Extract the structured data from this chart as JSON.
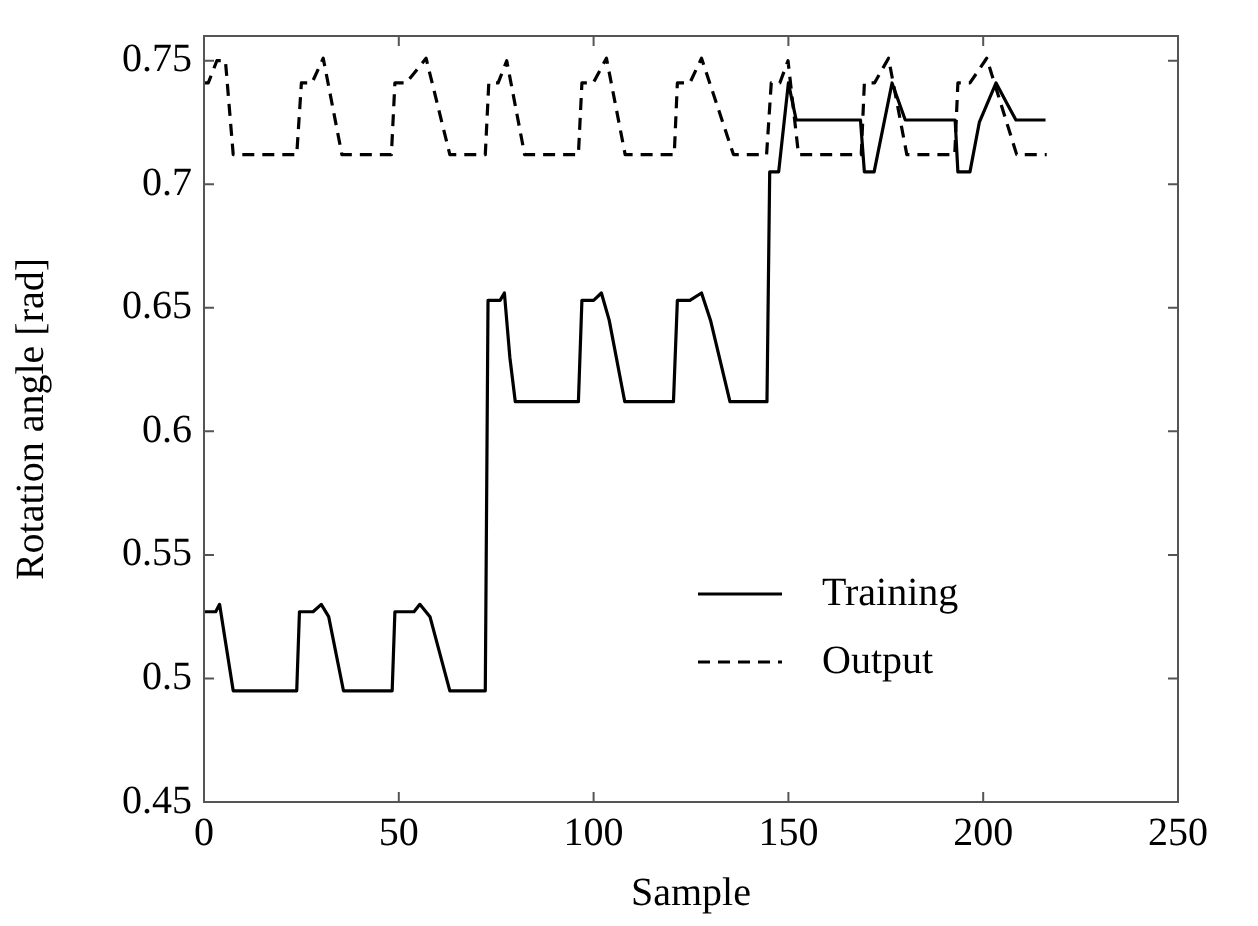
{
  "chart_data": {
    "type": "line",
    "xlabel": "Sample",
    "ylabel": "Rotation angle [rad]",
    "xlim": [
      0,
      250
    ],
    "xticks": [
      0,
      50,
      100,
      150,
      200,
      250
    ],
    "ylim": [
      0.45,
      0.76
    ],
    "yticks": [
      {
        "value": 0.45,
        "label": "0.45"
      },
      {
        "value": 0.5,
        "label": "0.5"
      },
      {
        "value": 0.55,
        "label": "0.55"
      },
      {
        "value": 0.6,
        "label": "0.6"
      },
      {
        "value": 0.65,
        "label": "0.65"
      },
      {
        "value": 0.7,
        "label": "0.7"
      },
      {
        "value": 0.75,
        "label": "0.75"
      }
    ],
    "grid": false,
    "legend": "bottom right",
    "marker": "none",
    "series": [
      {
        "name": "Training",
        "color": "#000000",
        "line_style": "solid",
        "x": [
          0,
          3,
          4,
          5.5,
          7.5,
          23.8,
          24.5,
          28,
          30.1,
          32,
          35.8,
          48.3,
          49,
          53.9,
          55.4,
          58,
          63.1,
          72.2,
          72.9,
          76,
          77.1,
          78.5,
          79.9,
          96.1,
          97,
          100,
          102,
          104,
          108,
          120.5,
          121.5,
          124.7,
          127.7,
          130,
          135,
          144.5,
          145.2,
          147.5,
          150,
          152,
          168.5,
          169.5,
          172,
          176.6,
          180,
          192.8,
          193.5,
          196.6,
          199,
          203.3,
          206,
          208.4,
          216
        ],
        "values": [
          0.527,
          0.527,
          0.53,
          0.515,
          0.495,
          0.495,
          0.527,
          0.527,
          0.53,
          0.525,
          0.495,
          0.495,
          0.527,
          0.527,
          0.53,
          0.525,
          0.495,
          0.495,
          0.653,
          0.653,
          0.656,
          0.63,
          0.612,
          0.612,
          0.653,
          0.653,
          0.656,
          0.645,
          0.612,
          0.612,
          0.653,
          0.653,
          0.656,
          0.645,
          0.612,
          0.612,
          0.705,
          0.705,
          0.741,
          0.726,
          0.726,
          0.705,
          0.705,
          0.741,
          0.726,
          0.726,
          0.705,
          0.705,
          0.725,
          0.741,
          0.733,
          0.726,
          0.726
        ]
      },
      {
        "name": "Output",
        "color": "#000000",
        "line_style": "dashed",
        "x": [
          0,
          1.1,
          3.3,
          5.5,
          7.5,
          23.8,
          25,
          27.7,
          30.6,
          35.4,
          48.1,
          49,
          51.9,
          57,
          63.1,
          72.2,
          73.1,
          75.5,
          77.7,
          82.3,
          96.1,
          97,
          99.9,
          103.3,
          108.1,
          120.7,
          121.5,
          124.7,
          127.7,
          135.9,
          144.4,
          145.6,
          147.8,
          149.9,
          152.6,
          168.7,
          169.5,
          172.1,
          175.7,
          180.4,
          192.7,
          193.5,
          196.6,
          200.9,
          208.6,
          216.3
        ],
        "values": [
          0.741,
          0.741,
          0.75,
          0.75,
          0.712,
          0.712,
          0.741,
          0.741,
          0.751,
          0.712,
          0.712,
          0.741,
          0.741,
          0.751,
          0.712,
          0.712,
          0.741,
          0.741,
          0.75,
          0.712,
          0.712,
          0.741,
          0.741,
          0.751,
          0.712,
          0.712,
          0.741,
          0.741,
          0.751,
          0.712,
          0.712,
          0.741,
          0.741,
          0.75,
          0.712,
          0.712,
          0.741,
          0.741,
          0.751,
          0.712,
          0.712,
          0.741,
          0.741,
          0.751,
          0.712,
          0.712
        ]
      }
    ]
  }
}
